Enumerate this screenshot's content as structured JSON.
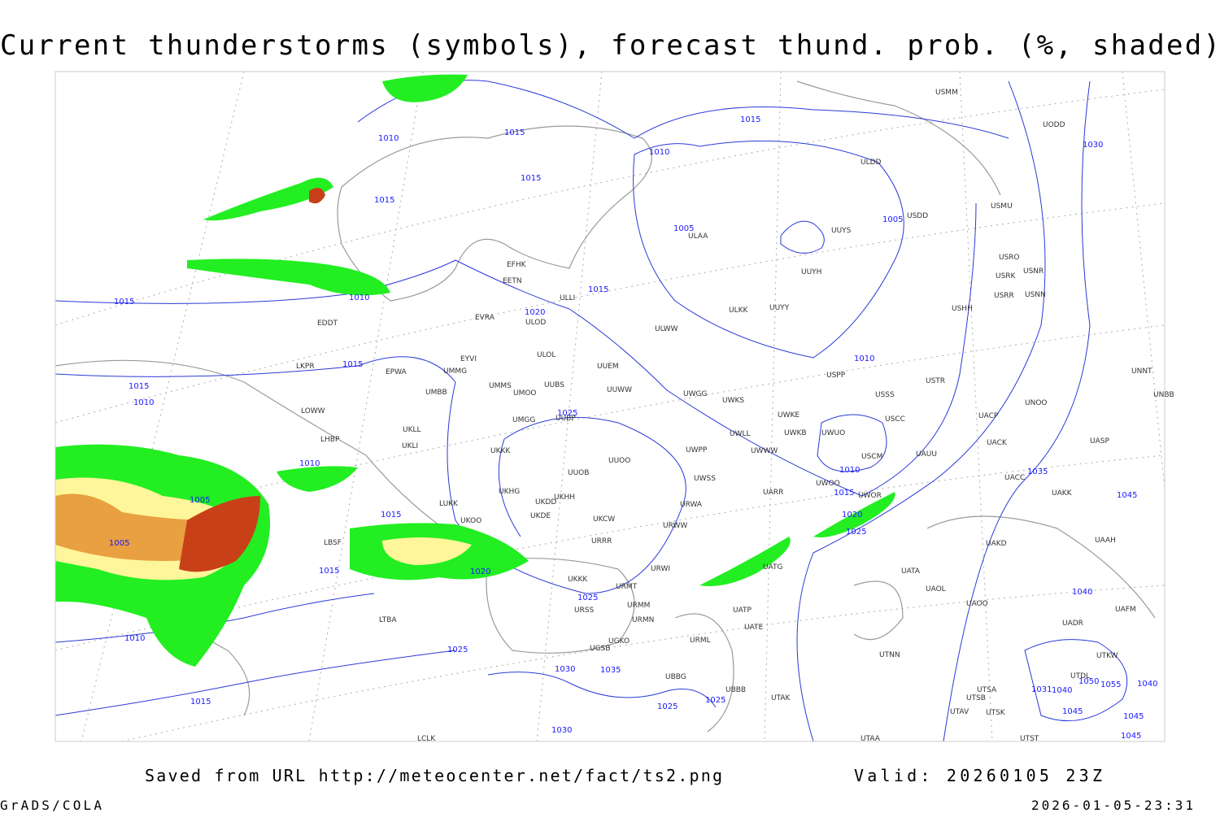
{
  "title": "Current thunderstorms (symbols), forecast thund. prob. (%, shaded)",
  "footer": {
    "saved": "Saved from URL http://meteocenter.net/fact/ts2.png",
    "valid": "Valid: 20260105 23Z",
    "software": "GrADS/COLA",
    "timestamp": "2026-01-05-23:31"
  },
  "stations": [
    "ULDD",
    "USDD",
    "UUYS",
    "USMU",
    "UUYH",
    "USRO",
    "USRK",
    "USNR",
    "USRR",
    "USNN",
    "USHH",
    "ULAA",
    "EFHK",
    "EETN",
    "ULLI",
    "EVRA",
    "ULOD",
    "EDDT",
    "UUYY",
    "ULKK",
    "ULWW",
    "EYVI",
    "ULOL",
    "UUEM",
    "LKPR",
    "EPWA",
    "UMMG",
    "USTR",
    "USPP",
    "UMMS",
    "UUBS",
    "UMOO",
    "UUWW",
    "UWGG",
    "UWKS",
    "USSS",
    "UMBB",
    "UNOO",
    "UNNT",
    "UNBB",
    "LOWW",
    "UWKE",
    "UUBP",
    "UMGG",
    "USCC",
    "UACP",
    "UKLL",
    "UWLL",
    "UWKB",
    "UWUO",
    "LHBP",
    "UKLI",
    "UACK",
    "UASP",
    "UUOO",
    "UKKK",
    "UWPP",
    "UWWW",
    "USCM",
    "UAUU",
    "UUOB",
    "UWSS",
    "UWOO",
    "UARR",
    "UWOR",
    "UACC",
    "UAKK",
    "UKHG",
    "UKDD",
    "UKHH",
    "LUKK",
    "UKDE",
    "URWA",
    "UKCW",
    "UKOO",
    "LBSF",
    "URWW",
    "URRR",
    "UAKD",
    "UAAH",
    "UATG",
    "URWI",
    "UATA",
    "UKKK",
    "URMT",
    "UAOL",
    "UAOO",
    "URSS",
    "URMM",
    "UAFM",
    "UATP",
    "URMN",
    "UATE",
    "LTBA",
    "UADR",
    "UGKO",
    "URML",
    "UGSB",
    "UTNN",
    "UTKW",
    "UTDL",
    "UBBG",
    "UTSA",
    "UBBB",
    "UTSB",
    "UTAK",
    "UTAV",
    "UTSK",
    "UTST",
    "UTAA",
    "LCLK",
    "UODD",
    "USMM"
  ],
  "isobar_labels": [
    "1010",
    "1015",
    "1015",
    "1010",
    "1015",
    "1015",
    "1005",
    "1005",
    "1030",
    "1010",
    "1015",
    "1015",
    "1020",
    "1015",
    "1015",
    "1010",
    "1025",
    "1010",
    "1010",
    "1005",
    "1015",
    "1005",
    "1015",
    "1020",
    "1025",
    "1010",
    "1015",
    "1020",
    "1025",
    "1035",
    "1045",
    "1040",
    "1010",
    "1025",
    "1030",
    "1035",
    "1025",
    "1025",
    "1015",
    "1030",
    "1055",
    "1050",
    "1040",
    "1031",
    "1040",
    "1045",
    "1045",
    "1045"
  ]
}
